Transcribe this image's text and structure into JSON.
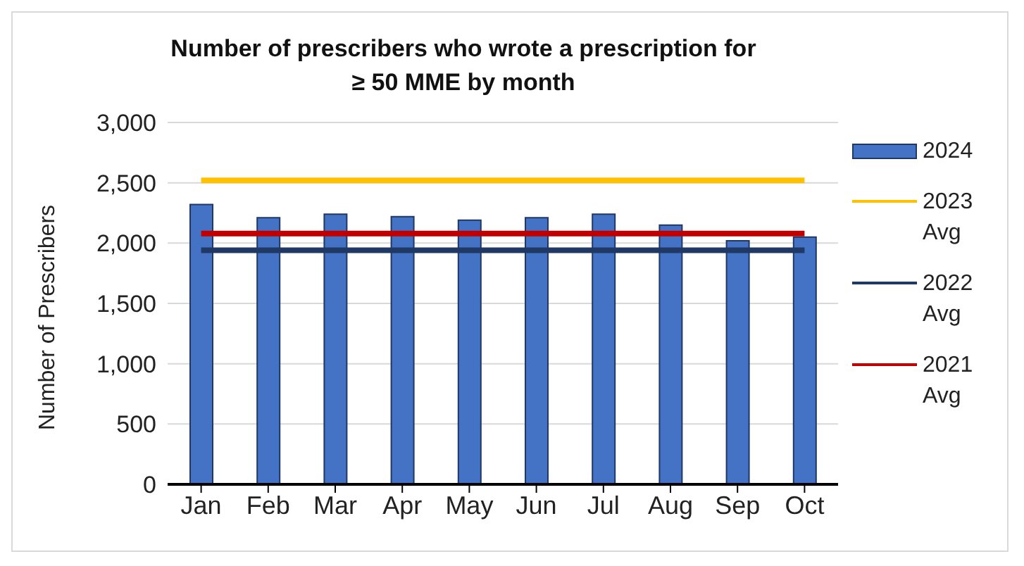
{
  "chart_data": {
    "type": "bar",
    "title": "Number of prescribers  who wrote a prescription for ≥ 50 MME by month",
    "ylabel": "Number of Prescribers",
    "categories": [
      "Jan",
      "Feb",
      "Mar",
      "Apr",
      "May",
      "Jun",
      "Jul",
      "Aug",
      "Sep",
      "Oct"
    ],
    "series": [
      {
        "name": "2024",
        "color": "#4472c4",
        "values": [
          2320,
          2210,
          2240,
          2220,
          2190,
          2210,
          2240,
          2150,
          2020,
          2050
        ]
      },
      {
        "name": "2023 Avg",
        "type": "line",
        "color": "#ffc000",
        "values": [
          2520,
          2520,
          2520,
          2520,
          2520,
          2520,
          2520,
          2520,
          2520,
          2520
        ]
      },
      {
        "name": "2022 Avg",
        "type": "line",
        "color": "#1f3864",
        "values": [
          1940,
          1940,
          1940,
          1940,
          1940,
          1940,
          1940,
          1940,
          1940,
          1940
        ]
      },
      {
        "name": "2021 Avg",
        "type": "line",
        "color": "#c00000",
        "values": [
          2080,
          2080,
          2080,
          2080,
          2080,
          2080,
          2080,
          2080,
          2080,
          2080
        ]
      }
    ],
    "ylim": [
      0,
      3000
    ],
    "yticks": [
      0,
      500,
      {
        "value": 1000,
        "label": "1,000"
      },
      {
        "value": 1500,
        "label": "1,500"
      },
      {
        "value": 2000,
        "label": "2,000"
      },
      {
        "value": 2500,
        "label": "2,500"
      },
      {
        "value": 3000,
        "label": "3,000"
      }
    ],
    "grid": "y",
    "legend": "right",
    "marker": "none"
  }
}
